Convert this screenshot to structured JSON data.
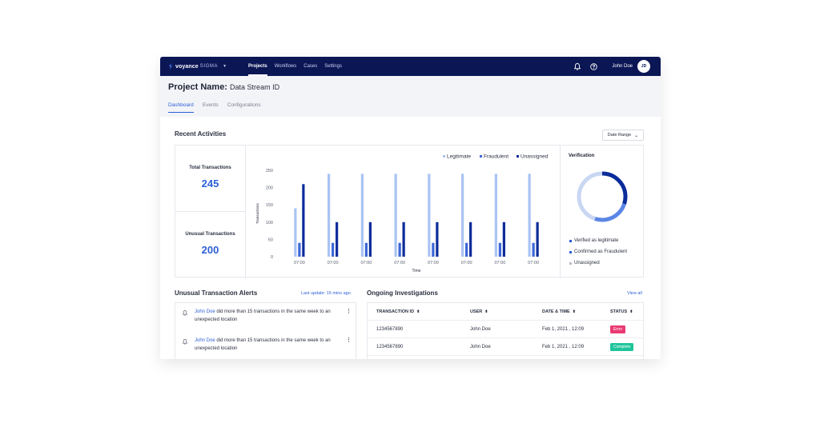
{
  "nav": {
    "brand": "voyance",
    "brand_sub": "SIGMA",
    "items": [
      {
        "label": "Projects",
        "active": true
      },
      {
        "label": "Workflows",
        "active": false
      },
      {
        "label": "Cases",
        "active": false
      },
      {
        "label": "Settings",
        "active": false
      }
    ],
    "user_name": "John Doe",
    "avatar_initials": "JD",
    "icons": [
      "bell-icon",
      "help-icon"
    ]
  },
  "project": {
    "title_label": "Project Name:",
    "title_value": "Data Stream ID",
    "tabs": [
      {
        "label": "Dashboard",
        "active": true
      },
      {
        "label": "Events",
        "active": false
      },
      {
        "label": "Configurations",
        "active": false
      }
    ]
  },
  "recent": {
    "title": "Recent Activities",
    "date_range": "Date Range",
    "total_label": "Total Transactions",
    "total_value": "245",
    "unusual_label": "Unusual Transactions",
    "unusual_value": "200"
  },
  "verification": {
    "title": "Verification",
    "legend": [
      "Verified as legitimate",
      "Confirmed as Fraudulent",
      "Unassigned"
    ],
    "shares": [
      0.3,
      0.25,
      0.45
    ],
    "colors": [
      "#0b2c9a",
      "#5b86e5",
      "#c9d7f3"
    ]
  },
  "chart_data": {
    "type": "bar",
    "categories": [
      "07:00",
      "07:00",
      "07:00",
      "07:00",
      "07:00",
      "07:00",
      "07:00",
      "07:00"
    ],
    "series": [
      {
        "name": "Legitimate",
        "color": "#a9c4f3",
        "values": [
          140,
          240,
          240,
          240,
          240,
          240,
          240,
          240
        ]
      },
      {
        "name": "Fraudulent",
        "color": "#3c66d8",
        "values": [
          40,
          40,
          40,
          40,
          40,
          40,
          40,
          40
        ]
      },
      {
        "name": "Unassigned",
        "color": "#0b2c9a",
        "values": [
          210,
          100,
          100,
          100,
          100,
          100,
          100,
          100
        ]
      }
    ],
    "xlabel": "Time",
    "ylabel": "Transactions",
    "yticks": [
      0,
      50,
      100,
      150,
      200,
      250
    ],
    "ylim": [
      0,
      250
    ],
    "legend_position": "top-right"
  },
  "alerts": {
    "title": "Unusual Transaction Alerts",
    "last_update": "Last update: 15 mins ago",
    "items": [
      {
        "name": "John Doe",
        "text": " did more than 15 transactions in the same week to an unexpected location"
      },
      {
        "name": "John Doe",
        "text": " did more than 15 transactions in the same week to an unexpected location"
      }
    ]
  },
  "investigations": {
    "title": "Ongoing Investigations",
    "view_all": "View all",
    "columns": [
      "TRANSACTION ID",
      "USER",
      "DATE & TIME",
      "STATUS"
    ],
    "rows": [
      {
        "id": "1234567890",
        "user": "John Doe",
        "date": "Feb 1, 2021 , 12:09",
        "status": "Error",
        "status_color": "#ea3a73"
      },
      {
        "id": "1234567890",
        "user": "John Doe",
        "date": "Feb 1, 2021 , 12:09",
        "status": "Complete",
        "status_color": "#1fc59a"
      }
    ]
  }
}
